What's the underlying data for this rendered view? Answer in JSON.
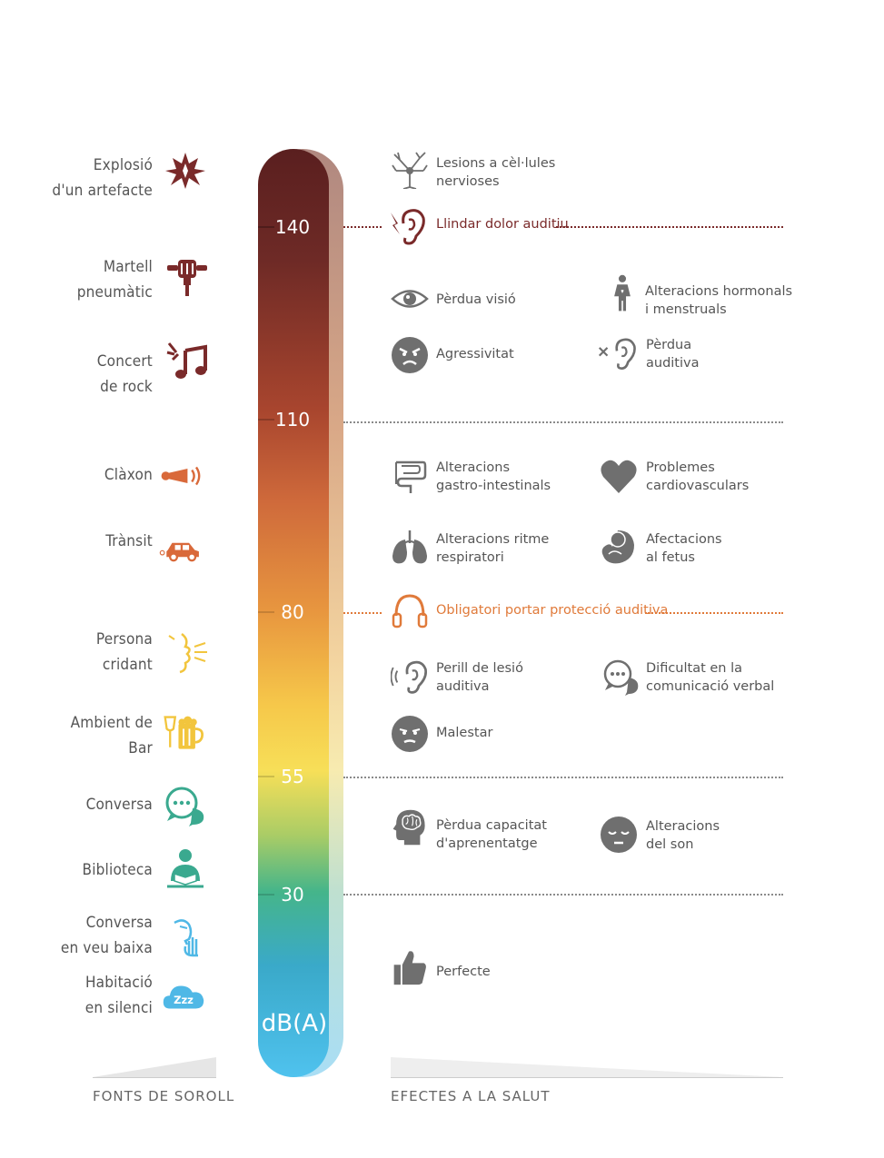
{
  "colors": {
    "threshold_pain": "#7a2a2a",
    "threshold_protection": "#e07a3a",
    "icon_gray": "#6f6f6f",
    "text_gray": "#555555"
  },
  "scale": {
    "unit": "dB(A)",
    "ticks": [
      "140",
      "110",
      "80",
      "55",
      "30"
    ]
  },
  "sources": {
    "heading": "FONTS DE SOROLL",
    "items": [
      {
        "label": "Explosió\nd'un artefacte",
        "icon": "explosion-icon"
      },
      {
        "label": "Martell\npneumàtic",
        "icon": "jackhammer-icon"
      },
      {
        "label": "Concert\nde rock",
        "icon": "music-notes-icon"
      },
      {
        "label": "Clàxon",
        "icon": "horn-icon"
      },
      {
        "label": "Trànsit",
        "icon": "car-icon"
      },
      {
        "label": "Persona\ncridant",
        "icon": "shouting-face-icon"
      },
      {
        "label": "Ambient de\nBar",
        "icon": "drinks-icon"
      },
      {
        "label": "Conversa",
        "icon": "chat-bubbles-icon"
      },
      {
        "label": "Biblioteca",
        "icon": "reading-person-icon"
      },
      {
        "label": "Conversa\nen veu baixa",
        "icon": "whisper-icon"
      },
      {
        "label": "Habitació\nen silenci",
        "icon": "sleep-cloud-icon"
      }
    ]
  },
  "effects": {
    "heading": "EFECTES A LA SALUT",
    "thresholds": {
      "pain": "Llindar dolor auditiu",
      "protection": "Obligatori portar protecció auditiva"
    },
    "items": [
      {
        "label": "Lesions a cèl·lules\nnervioses",
        "icon": "neuron-icon"
      },
      {
        "label": "Pèrdua visió",
        "icon": "eye-icon"
      },
      {
        "label": "Alteracions hormonals\ni menstruals",
        "icon": "woman-icon"
      },
      {
        "label": "Agressivitat",
        "icon": "angry-face-icon"
      },
      {
        "label": "Pèrdua\nauditiva",
        "icon": "ear-cross-icon"
      },
      {
        "label": "Alteracions\ngastro-intestinals",
        "icon": "intestine-icon"
      },
      {
        "label": "Problemes\ncardiovasculars",
        "icon": "heart-icon"
      },
      {
        "label": "Alteracions ritme\nrespiratori",
        "icon": "lungs-icon"
      },
      {
        "label": "Afectacions\nal fetus",
        "icon": "fetus-icon"
      },
      {
        "label": "Perill de lesió\nauditiva",
        "icon": "ear-sound-icon"
      },
      {
        "label": "Dificultat en la\ncomunicació verbal",
        "icon": "speech-bubbles-icon"
      },
      {
        "label": "Malestar",
        "icon": "uneasy-face-icon"
      },
      {
        "label": "Pèrdua capacitat\nd'aprenentatge",
        "icon": "brain-head-icon"
      },
      {
        "label": "Alteracions\ndel son",
        "icon": "sleepy-face-icon"
      },
      {
        "label": "Perfecte",
        "icon": "thumbs-up-icon"
      }
    ]
  }
}
